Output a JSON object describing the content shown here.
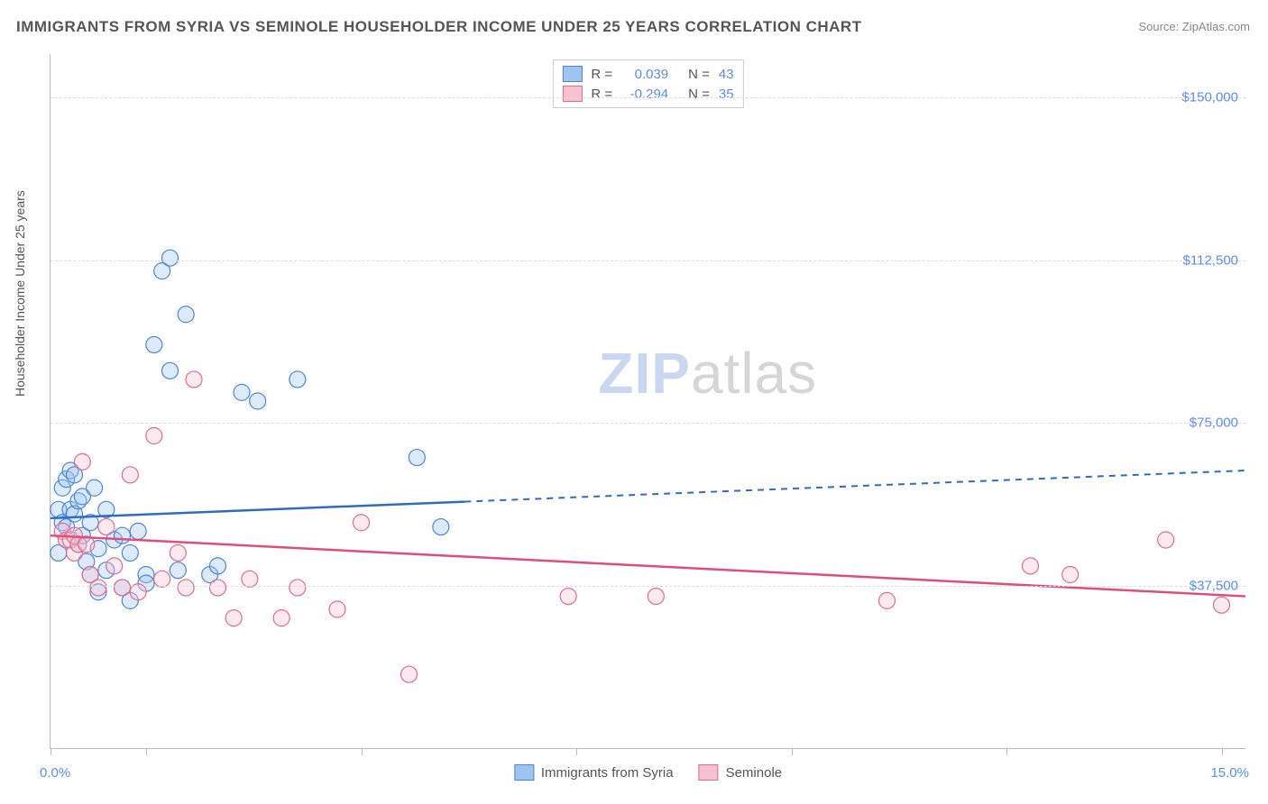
{
  "title": "IMMIGRANTS FROM SYRIA VS SEMINOLE HOUSEHOLDER INCOME UNDER 25 YEARS CORRELATION CHART",
  "source": "Source: ZipAtlas.com",
  "y_axis_label": "Householder Income Under 25 years",
  "chart": {
    "type": "scatter",
    "x_domain": [
      0,
      15
    ],
    "y_domain": [
      0,
      160000
    ],
    "background_color": "#ffffff",
    "grid_color": "#dddddd",
    "axis_color": "#bbbbbb",
    "y_ticks": [
      {
        "value": 37500,
        "label": "$37,500"
      },
      {
        "value": 75000,
        "label": "$75,000"
      },
      {
        "value": 112500,
        "label": "$112,500"
      },
      {
        "value": 150000,
        "label": "$150,000"
      }
    ],
    "x_tick_positions_pct": [
      0,
      8,
      26,
      44,
      62,
      80,
      98
    ],
    "x_min_label": "0.0%",
    "x_max_label": "15.0%",
    "watermark": {
      "text_a": "ZIP",
      "text_b": "atlas",
      "color_a": "#c9d8f0",
      "color_b": "#d6d6d6"
    },
    "series": [
      {
        "name": "Immigrants from Syria",
        "color_fill": "#9ec4ef",
        "color_stroke": "#4a86d8",
        "line_color": "#2f6cc0",
        "r_label": "R =",
        "r_value": "0.039",
        "n_label": "N =",
        "n_value": "43",
        "points": [
          [
            0.1,
            55000
          ],
          [
            0.1,
            45000
          ],
          [
            0.15,
            60000
          ],
          [
            0.15,
            52000
          ],
          [
            0.2,
            51000
          ],
          [
            0.2,
            62000
          ],
          [
            0.25,
            55000
          ],
          [
            0.25,
            64000
          ],
          [
            0.3,
            54000
          ],
          [
            0.3,
            63000
          ],
          [
            0.35,
            57000
          ],
          [
            0.35,
            47000
          ],
          [
            0.4,
            49000
          ],
          [
            0.4,
            58000
          ],
          [
            0.45,
            43000
          ],
          [
            0.5,
            52000
          ],
          [
            0.5,
            40000
          ],
          [
            0.55,
            60000
          ],
          [
            0.6,
            46000
          ],
          [
            0.6,
            36000
          ],
          [
            0.7,
            55000
          ],
          [
            0.7,
            41000
          ],
          [
            0.8,
            48000
          ],
          [
            0.9,
            49000
          ],
          [
            0.9,
            37000
          ],
          [
            1.0,
            45000
          ],
          [
            1.0,
            34000
          ],
          [
            1.1,
            50000
          ],
          [
            1.2,
            40000
          ],
          [
            1.2,
            38000
          ],
          [
            1.3,
            93000
          ],
          [
            1.4,
            110000
          ],
          [
            1.5,
            113000
          ],
          [
            1.5,
            87000
          ],
          [
            1.6,
            41000
          ],
          [
            1.7,
            100000
          ],
          [
            2.0,
            40000
          ],
          [
            2.1,
            42000
          ],
          [
            2.4,
            82000
          ],
          [
            2.6,
            80000
          ],
          [
            3.1,
            85000
          ],
          [
            4.6,
            67000
          ],
          [
            4.9,
            51000
          ]
        ],
        "regression": {
          "y_at_x0": 53000,
          "y_at_xmax": 64000,
          "solid_until_x": 5.2
        }
      },
      {
        "name": "Seminole",
        "color_fill": "#f6c2d1",
        "color_stroke": "#e06b8f",
        "line_color": "#e14d7b",
        "r_label": "R =",
        "r_value": "-0.294",
        "n_label": "N =",
        "n_value": "35",
        "points": [
          [
            0.15,
            50000
          ],
          [
            0.2,
            48000
          ],
          [
            0.25,
            48000
          ],
          [
            0.3,
            45000
          ],
          [
            0.3,
            49000
          ],
          [
            0.35,
            47000
          ],
          [
            0.4,
            66000
          ],
          [
            0.45,
            47000
          ],
          [
            0.5,
            40000
          ],
          [
            0.6,
            37000
          ],
          [
            0.7,
            51000
          ],
          [
            0.8,
            42000
          ],
          [
            0.9,
            37000
          ],
          [
            1.0,
            63000
          ],
          [
            1.1,
            36000
          ],
          [
            1.3,
            72000
          ],
          [
            1.4,
            39000
          ],
          [
            1.6,
            45000
          ],
          [
            1.7,
            37000
          ],
          [
            1.8,
            85000
          ],
          [
            2.1,
            37000
          ],
          [
            2.3,
            30000
          ],
          [
            2.5,
            39000
          ],
          [
            2.9,
            30000
          ],
          [
            3.1,
            37000
          ],
          [
            3.6,
            32000
          ],
          [
            3.9,
            52000
          ],
          [
            4.5,
            17000
          ],
          [
            6.5,
            35000
          ],
          [
            7.6,
            35000
          ],
          [
            10.5,
            34000
          ],
          [
            12.3,
            42000
          ],
          [
            12.8,
            40000
          ],
          [
            14.0,
            48000
          ],
          [
            14.7,
            33000
          ]
        ],
        "regression": {
          "y_at_x0": 49000,
          "y_at_xmax": 35000,
          "solid_until_x": 15
        }
      }
    ]
  }
}
